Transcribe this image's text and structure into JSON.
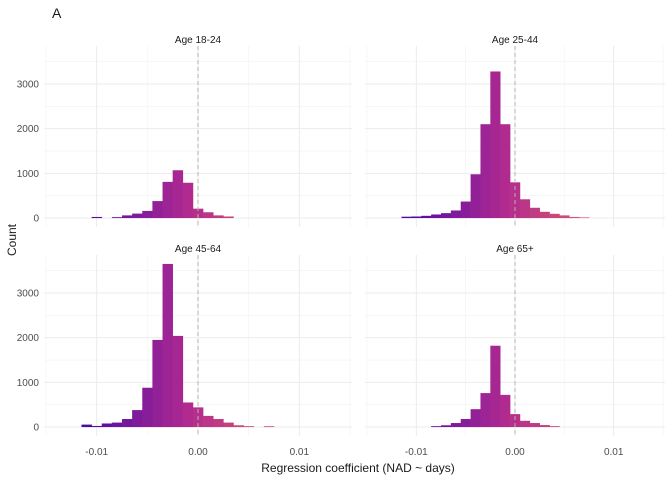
{
  "chart_data": {
    "type": "bar",
    "subtype": "faceted-histogram",
    "tag": "A",
    "xlabel": "Regression coefficient (NAD ~ days)",
    "ylabel": "Count",
    "xlim": [
      -0.0152,
      0.0152
    ],
    "ylim": [
      -200,
      3850
    ],
    "x_ticks": [
      -0.01,
      0.0,
      0.01
    ],
    "x_tick_labels": [
      "-0.01",
      "0.00",
      "0.01"
    ],
    "y_ticks": [
      0,
      1000,
      2000,
      3000
    ],
    "y_tick_labels": [
      "0",
      "1000",
      "2000",
      "3000"
    ],
    "bin_width": 0.001,
    "bin_centers": [
      -0.011,
      -0.01,
      -0.009,
      -0.008,
      -0.007,
      -0.006,
      -0.005,
      -0.004,
      -0.003,
      -0.002,
      -0.001,
      0.0,
      0.001,
      0.002,
      0.003,
      0.004,
      0.005,
      0.006,
      0.007,
      0.008,
      0.009
    ],
    "reference_line": 0.0,
    "grid": true,
    "legend": "none",
    "fill_colors": {
      "low": "#4b0aa6",
      "mid": "#b12a90",
      "high": "#e16462"
    },
    "facets": [
      {
        "title": "Age 18-24",
        "values": [
          0,
          25,
          0,
          20,
          60,
          100,
          160,
          380,
          810,
          1070,
          790,
          210,
          130,
          60,
          35,
          0,
          0,
          0,
          0,
          0,
          0
        ]
      },
      {
        "title": "Age 25-44",
        "values": [
          30,
          35,
          50,
          80,
          110,
          170,
          370,
          980,
          2100,
          3280,
          2100,
          800,
          420,
          230,
          140,
          95,
          60,
          25,
          15,
          0,
          0
        ]
      },
      {
        "title": "Age 45-64",
        "values": [
          55,
          25,
          80,
          100,
          180,
          380,
          880,
          1950,
          3650,
          2040,
          550,
          440,
          250,
          180,
          100,
          40,
          20,
          0,
          20,
          0,
          0
        ]
      },
      {
        "title": "Age 65+",
        "values": [
          0,
          0,
          0,
          20,
          40,
          90,
          180,
          400,
          760,
          1820,
          720,
          290,
          140,
          90,
          45,
          20,
          0,
          0,
          0,
          0,
          0
        ]
      }
    ]
  }
}
